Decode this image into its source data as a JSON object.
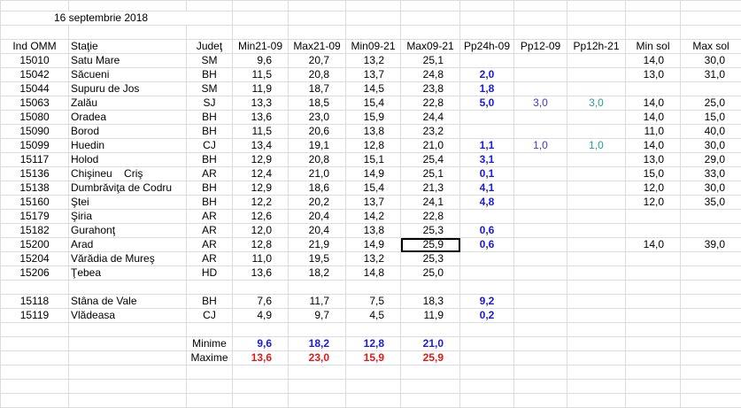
{
  "date": "16 septembrie 2018",
  "headers": [
    "Ind OMM",
    "Staţie",
    "Judeţ",
    "Min21-09",
    "Max21-09",
    "Min09-21",
    "Max09-21",
    "Pp24h-09",
    "Pp12-09",
    "Pp12h-21",
    "Min sol",
    "Max sol"
  ],
  "rows": [
    [
      "15010",
      "Satu Mare",
      "SM",
      "9,6",
      "20,7",
      "13,2",
      "25,1",
      null,
      null,
      null,
      "14,0",
      "30,0"
    ],
    [
      "15042",
      "Săcueni",
      "BH",
      "11,5",
      "20,8",
      "13,7",
      "24,8",
      "2,0",
      null,
      null,
      "13,0",
      "31,0"
    ],
    [
      "15044",
      "Supuru de Jos",
      "SM",
      "11,9",
      "18,7",
      "14,5",
      "23,8",
      "1,8",
      null,
      null,
      null,
      null
    ],
    [
      "15063",
      "Zalău",
      "SJ",
      "13,3",
      "18,5",
      "15,4",
      "22,8",
      "5,0",
      "3,0",
      "3,0",
      "14,0",
      "25,0"
    ],
    [
      "15080",
      "Oradea",
      "BH",
      "13,6",
      "23,0",
      "15,9",
      "24,4",
      null,
      null,
      null,
      "14,0",
      "15,0"
    ],
    [
      "15090",
      "Borod",
      "BH",
      "11,5",
      "20,6",
      "13,8",
      "23,2",
      null,
      null,
      null,
      "11,0",
      "40,0"
    ],
    [
      "15099",
      "Huedin",
      "CJ",
      "13,4",
      "19,1",
      "12,8",
      "21,0",
      "1,1",
      "1,0",
      "1,0",
      "14,0",
      "30,0"
    ],
    [
      "15117",
      "Holod",
      "BH",
      "12,9",
      "20,8",
      "15,1",
      "25,4",
      "3,1",
      null,
      null,
      "13,0",
      "29,0"
    ],
    [
      "15136",
      "Chişineu    Criş",
      "AR",
      "12,4",
      "21,0",
      "14,9",
      "25,1",
      "0,1",
      null,
      null,
      "15,0",
      "33,0"
    ],
    [
      "15138",
      "Dumbrăviţa de Codru",
      "BH",
      "12,9",
      "18,6",
      "15,4",
      "21,3",
      "4,1",
      null,
      null,
      "12,0",
      "30,0"
    ],
    [
      "15160",
      "Ştei",
      "BH",
      "12,2",
      "20,2",
      "13,7",
      "24,1",
      "4,8",
      null,
      null,
      "12,0",
      "35,0"
    ],
    [
      "15179",
      "Şiria",
      "AR",
      "12,6",
      "20,4",
      "14,2",
      "22,8",
      null,
      null,
      null,
      null,
      null
    ],
    [
      "15182",
      "Gurahonţ",
      "AR",
      "12,0",
      "20,4",
      "13,8",
      "25,3",
      "0,6",
      null,
      null,
      null,
      null
    ],
    [
      "15200",
      "Arad",
      "AR",
      "12,8",
      "21,9",
      "14,9",
      "25,9",
      "0,6",
      null,
      null,
      "14,0",
      "39,0"
    ],
    [
      "15204",
      "Vărădia de Mureş",
      "AR",
      "11,0",
      "19,5",
      "13,2",
      "25,3",
      null,
      null,
      null,
      null,
      null
    ],
    [
      "15206",
      "Ţebea",
      "HD",
      "13,6",
      "18,2",
      "14,8",
      "25,0",
      null,
      null,
      null,
      null,
      null
    ]
  ],
  "rows2": [
    [
      "15118",
      "Stâna de Vale",
      "BH",
      "7,6",
      "11,7",
      "7,5",
      "18,3",
      "9,2",
      null,
      null,
      null,
      null
    ],
    [
      "15119",
      "Vlădeasa",
      "CJ",
      "4,9",
      "9,7",
      "4,5",
      "11,9",
      "0,2",
      null,
      null,
      null,
      null
    ]
  ],
  "summary": [
    {
      "label": "Minime",
      "values": [
        "9,6",
        "18,2",
        "12,8",
        "21,0"
      ]
    },
    {
      "label": "Maxime",
      "values": [
        "13,6",
        "23,0",
        "15,9",
        "25,9"
      ]
    }
  ]
}
